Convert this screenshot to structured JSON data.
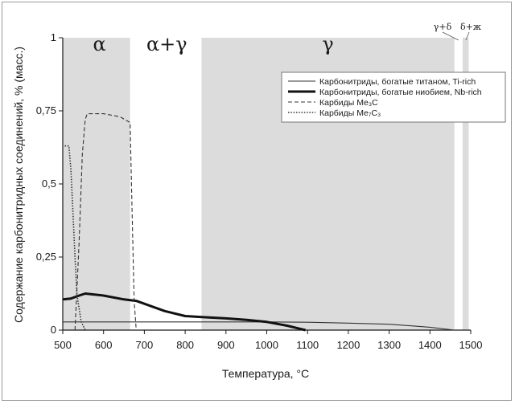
{
  "chart_data": {
    "type": "line",
    "xlabel": "Температура, °C",
    "ylabel": "Содержание карбонитридных соединений, % (масс.)",
    "xlim": [
      500,
      1500
    ],
    "ylim": [
      0,
      1
    ],
    "x_ticks": [
      "500",
      "600",
      "700",
      "800",
      "900",
      "1000",
      "1100",
      "1200",
      "1300",
      "1400",
      "1500"
    ],
    "y_ticks": [
      "0",
      "0,25",
      "0,5",
      "0,75",
      "1"
    ],
    "grid": false,
    "legend_position": "top-right",
    "phase_regions": [
      {
        "label": "α",
        "x0": 500,
        "x1": 665,
        "shaded": true
      },
      {
        "label": "α+γ",
        "x0": 665,
        "x1": 840,
        "shaded": false
      },
      {
        "label": "γ",
        "x0": 840,
        "x1": 1460,
        "shaded": true
      },
      {
        "label": "γ+δ",
        "x0": 1460,
        "x1": 1480,
        "shaded": false
      },
      {
        "label": "δ+ж",
        "x0": 1480,
        "x1": 1495,
        "shaded": true
      }
    ],
    "series": [
      {
        "name": "Карбонитриды, богатые титаном, Ti-rich",
        "style": "thin",
        "x": [
          500,
          600,
          700,
          800,
          900,
          1000,
          1100,
          1200,
          1300,
          1400,
          1460
        ],
        "y": [
          0.028,
          0.028,
          0.028,
          0.028,
          0.028,
          0.028,
          0.027,
          0.024,
          0.02,
          0.01,
          0.0
        ]
      },
      {
        "name": "Карбонитриды, богатые ниобием, Nb-rich",
        "style": "thick",
        "x": [
          500,
          520,
          540,
          555,
          600,
          650,
          680,
          700,
          750,
          800,
          850,
          900,
          950,
          1000,
          1050,
          1080,
          1095
        ],
        "y": [
          0.105,
          0.108,
          0.118,
          0.125,
          0.118,
          0.105,
          0.1,
          0.09,
          0.065,
          0.048,
          0.044,
          0.04,
          0.035,
          0.028,
          0.015,
          0.005,
          0.0
        ]
      },
      {
        "name": "Карбиды Me₃C",
        "style": "dashed",
        "x": [
          530,
          540,
          548,
          555,
          560,
          600,
          640,
          665,
          670,
          675,
          680
        ],
        "y": [
          0.0,
          0.3,
          0.6,
          0.72,
          0.74,
          0.74,
          0.73,
          0.71,
          0.4,
          0.1,
          0.0
        ]
      },
      {
        "name": "Карбиды Me₇C₃",
        "style": "dotted",
        "x": [
          505,
          515,
          520,
          525,
          530,
          535,
          545,
          555
        ],
        "y": [
          0.63,
          0.63,
          0.55,
          0.4,
          0.25,
          0.12,
          0.03,
          0.0
        ]
      }
    ]
  }
}
